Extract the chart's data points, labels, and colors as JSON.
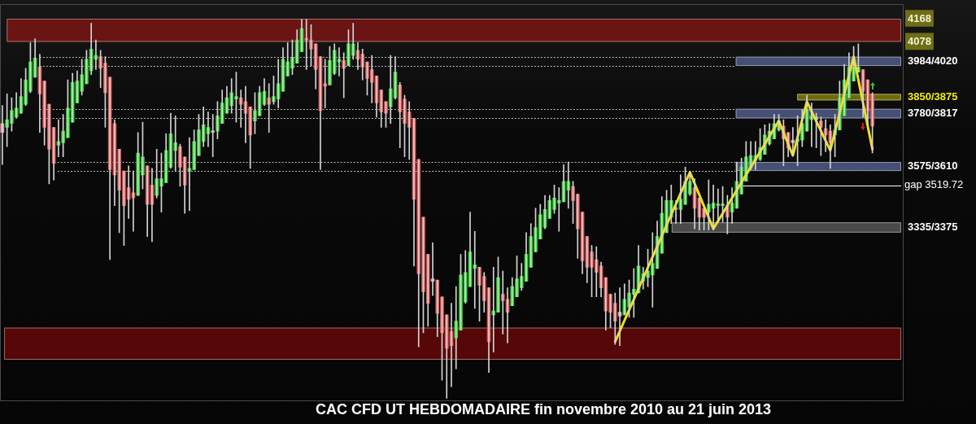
{
  "chart_data": {
    "type": "candlestick",
    "title": "CAC CFD UT HEBDOMADAIRE fin novembre 2010 au 21 juin 2013",
    "categories": [
      null,
      null,
      null,
      null,
      null,
      null,
      null,
      null,
      null,
      null,
      null,
      null,
      null,
      null,
      null,
      null,
      null,
      null,
      null,
      null,
      null,
      null,
      null,
      null,
      null,
      null,
      null,
      null,
      null,
      null,
      null,
      null,
      null,
      null,
      null,
      null,
      null,
      null,
      null,
      null,
      null,
      null,
      null,
      null,
      null,
      null,
      null,
      null,
      null,
      null,
      null,
      null,
      null,
      null,
      null,
      null,
      null,
      null,
      null,
      null,
      null,
      null,
      null,
      null,
      null,
      null,
      null,
      null,
      null,
      null,
      null,
      null,
      null,
      null,
      null,
      null,
      null,
      null,
      null,
      null,
      null,
      null,
      null,
      null,
      null,
      null,
      null,
      null,
      null,
      null,
      null,
      null,
      null,
      null,
      null,
      null,
      null,
      null,
      null,
      null,
      null,
      null,
      null,
      null,
      null,
      null,
      null,
      null,
      null,
      null,
      null,
      null,
      null,
      null,
      null,
      null,
      null,
      null,
      null,
      null,
      null,
      null,
      null,
      null,
      null,
      null,
      null,
      null,
      null,
      null,
      null,
      null,
      null,
      null,
      null,
      null,
      null,
      null,
      null,
      null,
      null,
      null,
      null,
      null,
      null,
      null,
      null,
      null,
      null,
      null,
      null,
      null,
      null,
      null,
      null,
      null,
      null,
      null,
      null,
      null,
      null,
      null,
      null,
      null,
      null,
      null,
      null,
      null,
      null,
      null,
      null,
      null,
      null,
      null,
      null,
      null,
      null,
      null,
      null,
      null,
      null,
      null,
      null,
      null,
      null,
      null,
      null,
      null,
      null,
      null,
      null,
      null,
      null
    ],
    "ohlc": [
      [
        3760,
        3830,
        3600,
        3725
      ],
      [
        3745,
        3875,
        3670,
        3775
      ],
      [
        3760,
        3860,
        3730,
        3810
      ],
      [
        3785,
        3880,
        3780,
        3820
      ],
      [
        3800,
        3935,
        3800,
        3865
      ],
      [
        3835,
        3975,
        3830,
        3930
      ],
      [
        3885,
        4075,
        3880,
        4000
      ],
      [
        3940,
        4090,
        3940,
        4015
      ],
      [
        3980,
        4030,
        3725,
        3875
      ],
      [
        3925,
        3925,
        3675,
        3745
      ],
      [
        3835,
        3835,
        3525,
        3660
      ],
      [
        3745,
        3745,
        3540,
        3605
      ],
      [
        3675,
        3775,
        3630,
        3690
      ],
      [
        3685,
        3795,
        3630,
        3730
      ],
      [
        3705,
        3930,
        3705,
        3820
      ],
      [
        3765,
        3955,
        3765,
        3920
      ],
      [
        3840,
        3965,
        3840,
        3925
      ],
      [
        3885,
        4010,
        3870,
        3950
      ],
      [
        3915,
        4045,
        3915,
        4010
      ],
      [
        3965,
        4150,
        3950,
        4050
      ],
      [
        4010,
        4085,
        3970,
        4025
      ],
      [
        4020,
        4045,
        3900,
        3975
      ],
      [
        3995,
        4020,
        3745,
        3880
      ],
      [
        3940,
        3940,
        3230,
        3580
      ],
      [
        3760,
        3775,
        3440,
        3560
      ],
      [
        3660,
        3660,
        3335,
        3500
      ],
      [
        3575,
        3575,
        3285,
        3440
      ],
      [
        3510,
        3595,
        3390,
        3465
      ],
      [
        3490,
        3575,
        3340,
        3470
      ],
      [
        3480,
        3725,
        3480,
        3645
      ],
      [
        3560,
        3765,
        3505,
        3630
      ],
      [
        3595,
        3595,
        3320,
        3445
      ],
      [
        3520,
        3585,
        3300,
        3445
      ],
      [
        3480,
        3660,
        3470,
        3545
      ],
      [
        3515,
        3645,
        3415,
        3545
      ],
      [
        3530,
        3720,
        3530,
        3655
      ],
      [
        3590,
        3800,
        3585,
        3720
      ],
      [
        3655,
        3790,
        3575,
        3685
      ],
      [
        3670,
        3680,
        3515,
        3590
      ],
      [
        3630,
        3630,
        3410,
        3520
      ],
      [
        3575,
        3705,
        3420,
        3585
      ],
      [
        3580,
        3735,
        3580,
        3690
      ],
      [
        3635,
        3795,
        3635,
        3735
      ],
      [
        3690,
        3825,
        3670,
        3755
      ],
      [
        3720,
        3805,
        3670,
        3745
      ],
      [
        3730,
        3795,
        3630,
        3725
      ],
      [
        3730,
        3845,
        3700,
        3790
      ],
      [
        3760,
        3890,
        3760,
        3840
      ],
      [
        3800,
        3905,
        3800,
        3860
      ],
      [
        3830,
        3935,
        3800,
        3880
      ],
      [
        3855,
        3960,
        3765,
        3865
      ],
      [
        3860,
        3890,
        3745,
        3835
      ],
      [
        3845,
        3905,
        3685,
        3800
      ],
      [
        3825,
        3825,
        3585,
        3715
      ],
      [
        3770,
        3880,
        3720,
        3810
      ],
      [
        3790,
        3905,
        3790,
        3880
      ],
      [
        3835,
        3935,
        3830,
        3885
      ],
      [
        3860,
        3915,
        3725,
        3835
      ],
      [
        3845,
        3945,
        3835,
        3865
      ],
      [
        3855,
        4010,
        3820,
        3915
      ],
      [
        3885,
        4055,
        3885,
        4010
      ],
      [
        3945,
        4075,
        3945,
        4000
      ],
      [
        3975,
        4085,
        3950,
        4015
      ],
      [
        3995,
        4125,
        3995,
        4085
      ],
      [
        4040,
        4165,
        4040,
        4130
      ],
      [
        4090,
        4165,
        3970,
        4085
      ],
      [
        4085,
        4145,
        3985,
        4050
      ],
      [
        4070,
        4070,
        3895,
        3970
      ],
      [
        4020,
        4020,
        3580,
        3810
      ],
      [
        3915,
        4010,
        3820,
        3905
      ],
      [
        3910,
        4060,
        3910,
        4005
      ],
      [
        3955,
        4070,
        3950,
        4045
      ],
      [
        4000,
        4055,
        3945,
        4010
      ],
      [
        4005,
        4035,
        3860,
        3975
      ],
      [
        3985,
        4125,
        3985,
        4070
      ],
      [
        4025,
        4150,
        4010,
        4070
      ],
      [
        4045,
        4075,
        3970,
        4010
      ],
      [
        4030,
        4050,
        3930,
        3980
      ],
      [
        4000,
        4000,
        3870,
        3935
      ],
      [
        3970,
        4025,
        3840,
        3920
      ],
      [
        3945,
        3945,
        3785,
        3840
      ],
      [
        3890,
        3890,
        3745,
        3805
      ],
      [
        3845,
        3845,
        3745,
        3800
      ],
      [
        3825,
        4025,
        3760,
        3895
      ],
      [
        3860,
        4020,
        3855,
        3960
      ],
      [
        3910,
        3920,
        3665,
        3805
      ],
      [
        3855,
        3870,
        3630,
        3760
      ],
      [
        3805,
        3845,
        3620,
        3745
      ],
      [
        3780,
        3780,
        3205,
        3465
      ],
      [
        3620,
        3620,
        2890,
        3175
      ],
      [
        3395,
        3395,
        2945,
        3105
      ],
      [
        3250,
        3250,
        2970,
        3060
      ],
      [
        3155,
        3295,
        3090,
        3145
      ],
      [
        3150,
        3150,
        2930,
        3020
      ],
      [
        3085,
        3085,
        2760,
        2945
      ],
      [
        3015,
        3015,
        2690,
        2885
      ],
      [
        2950,
        3060,
        2735,
        2895
      ],
      [
        2925,
        3125,
        2805,
        2990
      ],
      [
        2955,
        3250,
        2955,
        3170
      ],
      [
        3065,
        3265,
        3060,
        3180
      ],
      [
        3125,
        3415,
        3125,
        3260
      ],
      [
        3195,
        3340,
        3040,
        3210
      ],
      [
        3200,
        3200,
        2990,
        3130
      ],
      [
        3165,
        3180,
        3025,
        3070
      ],
      [
        3120,
        3120,
        2790,
        2910
      ],
      [
        3015,
        3200,
        2870,
        3030
      ],
      [
        3025,
        3240,
        3025,
        3160
      ],
      [
        3095,
        3185,
        2940,
        3070
      ],
      [
        3075,
        3120,
        2905,
        3025
      ],
      [
        3050,
        3160,
        3050,
        3125
      ],
      [
        3085,
        3245,
        3085,
        3155
      ],
      [
        3120,
        3215,
        3110,
        3165
      ],
      [
        3145,
        3335,
        3145,
        3250
      ],
      [
        3200,
        3370,
        3200,
        3320
      ],
      [
        3260,
        3430,
        3260,
        3355
      ],
      [
        3310,
        3445,
        3310,
        3405
      ],
      [
        3355,
        3480,
        3350,
        3425
      ],
      [
        3390,
        3480,
        3390,
        3460
      ],
      [
        3425,
        3520,
        3410,
        3470
      ],
      [
        3450,
        3510,
        3340,
        3460
      ],
      [
        3455,
        3600,
        3455,
        3535
      ],
      [
        3500,
        3610,
        3430,
        3535
      ],
      [
        3515,
        3535,
        3370,
        3460
      ],
      [
        3485,
        3485,
        3235,
        3350
      ],
      [
        3415,
        3415,
        3175,
        3225
      ],
      [
        3320,
        3320,
        3140,
        3200
      ],
      [
        3260,
        3285,
        3085,
        3200
      ],
      [
        3230,
        3280,
        3085,
        3180
      ],
      [
        3205,
        3220,
        3085,
        3120
      ],
      [
        3160,
        3160,
        2955,
        3030
      ],
      [
        3095,
        3095,
        2965,
        3025
      ],
      [
        3060,
        3100,
        2900,
        2990
      ],
      [
        3025,
        3120,
        2895,
        3010
      ],
      [
        3015,
        3135,
        3015,
        3075
      ],
      [
        3045,
        3150,
        3005,
        3100
      ],
      [
        3095,
        3195,
        3005,
        3115
      ],
      [
        3100,
        3285,
        3100,
        3205
      ],
      [
        3145,
        3200,
        3115,
        3175
      ],
      [
        3160,
        3270,
        3125,
        3185
      ],
      [
        3170,
        3335,
        3045,
        3215
      ],
      [
        3195,
        3380,
        3195,
        3320
      ],
      [
        3255,
        3475,
        3255,
        3410
      ],
      [
        3335,
        3500,
        3335,
        3460
      ],
      [
        3395,
        3520,
        3370,
        3460
      ],
      [
        3430,
        3460,
        3370,
        3425
      ],
      [
        3425,
        3560,
        3370,
        3465
      ],
      [
        3445,
        3590,
        3445,
        3535
      ],
      [
        3485,
        3570,
        3480,
        3535
      ],
      [
        3510,
        3545,
        3350,
        3430
      ],
      [
        3470,
        3470,
        3345,
        3395
      ],
      [
        3430,
        3430,
        3345,
        3395
      ],
      [
        3415,
        3540,
        3345,
        3445
      ],
      [
        3430,
        3520,
        3345,
        3450
      ],
      [
        3440,
        3505,
        3375,
        3445
      ],
      [
        3440,
        3515,
        3375,
        3445
      ],
      [
        3440,
        3480,
        3330,
        3395
      ],
      [
        3415,
        3510,
        3370,
        3450
      ],
      [
        3430,
        3610,
        3430,
        3535
      ],
      [
        3485,
        3625,
        3485,
        3590
      ],
      [
        3535,
        3690,
        3535,
        3630
      ],
      [
        3585,
        3690,
        3580,
        3635
      ],
      [
        3615,
        3690,
        3580,
        3635
      ],
      [
        3620,
        3740,
        3615,
        3665
      ],
      [
        3640,
        3755,
        3640,
        3715
      ],
      [
        3680,
        3760,
        3675,
        3730
      ],
      [
        3700,
        3795,
        3700,
        3760
      ],
      [
        3735,
        3795,
        3730,
        3770
      ],
      [
        3750,
        3775,
        3595,
        3700
      ],
      [
        3725,
        3725,
        3630,
        3665
      ],
      [
        3695,
        3745,
        3635,
        3685
      ],
      [
        3690,
        3790,
        3595,
        3700
      ],
      [
        3695,
        3815,
        3670,
        3760
      ],
      [
        3730,
        3870,
        3730,
        3815
      ],
      [
        3775,
        3840,
        3670,
        3790
      ],
      [
        3785,
        3800,
        3665,
        3775
      ],
      [
        3770,
        3785,
        3635,
        3745
      ],
      [
        3740,
        3775,
        3650,
        3715
      ],
      [
        3730,
        3755,
        3585,
        3685
      ],
      [
        3715,
        3795,
        3630,
        3735
      ],
      [
        3735,
        3925,
        3735,
        3860
      ],
      [
        3790,
        3990,
        3790,
        3930
      ],
      [
        3860,
        4035,
        3860,
        3980
      ],
      [
        3925,
        4060,
        3925,
        3980
      ],
      [
        3960,
        4070,
        3960,
        3980
      ],
      [
        3970,
        3970,
        3785,
        3885
      ],
      [
        3930,
        3930,
        3755,
        3810
      ],
      [
        3875,
        3880,
        3645,
        3750
      ],
      null,
      null,
      null,
      null,
      null,
      null
    ],
    "colors": [
      "#d6a4a4",
      "#2ed42e",
      "#2ed42e",
      "#2ed42e",
      "#2ed42e",
      "#2ed42e",
      "#2ed42e",
      "#2ed42e",
      "#e05a5a",
      "#e05a5a",
      "#e05a5a",
      "#e05a5a",
      "#2ed42e",
      "#2ed42e",
      "#2ed42e",
      "#2ed42e",
      "#2ed42e",
      "#2ed42e",
      "#2ed42e",
      "#2ed42e",
      "#2ed42e",
      "#e05a5a",
      "#e05a5a",
      "#e05a5a",
      "#e05a5a",
      "#e05a5a",
      "#e05a5a",
      "#e05a5a",
      "#e05a5a",
      "#2ed42e",
      "#2ed42e",
      "#e05a5a",
      "#e05a5a",
      "#2ed42e",
      "#2ed42e",
      "#2ed42e",
      "#2ed42e",
      "#2ed42e",
      "#e05a5a",
      "#e05a5a",
      "#2ed42e",
      "#2ed42e",
      "#2ed42e",
      "#2ed42e",
      "#2ed42e",
      "#d6a4a4",
      "#2ed42e",
      "#2ed42e",
      "#2ed42e",
      "#2ed42e",
      "#2ed42e",
      "#e05a5a",
      "#e05a5a",
      "#e05a5a",
      "#2ed42e",
      "#2ed42e",
      "#2ed42e",
      "#e05a5a",
      "#2ed42e",
      "#2ed42e",
      "#2ed42e",
      "#2ed42e",
      "#2ed42e",
      "#2ed42e",
      "#2ed42e",
      "#e05a5a",
      "#e05a5a",
      "#e05a5a",
      "#e05a5a",
      "#e05a5a",
      "#2ed42e",
      "#2ed42e",
      "#2ed42e",
      "#e05a5a",
      "#2ed42e",
      "#2ed42e",
      "#e05a5a",
      "#e05a5a",
      "#e05a5a",
      "#e05a5a",
      "#e05a5a",
      "#e05a5a",
      "#e05a5a",
      "#2ed42e",
      "#2ed42e",
      "#e05a5a",
      "#e05a5a",
      "#e05a5a",
      "#e05a5a",
      "#e05a5a",
      "#e05a5a",
      "#e05a5a",
      "#d6a4a4",
      "#e05a5a",
      "#e05a5a",
      "#e05a5a",
      "#e05a5a",
      "#2ed42e",
      "#2ed42e",
      "#2ed42e",
      "#2ed42e",
      "#2ed42e",
      "#e05a5a",
      "#e05a5a",
      "#e05a5a",
      "#2ed42e",
      "#2ed42e",
      "#e05a5a",
      "#e05a5a",
      "#2ed42e",
      "#2ed42e",
      "#2ed42e",
      "#2ed42e",
      "#2ed42e",
      "#2ed42e",
      "#2ed42e",
      "#2ed42e",
      "#2ed42e",
      "#2ed42e",
      "#2ed42e",
      "#2ed42e",
      "#2ed42e",
      "#e05a5a",
      "#e05a5a",
      "#e05a5a",
      "#e05a5a",
      "#e05a5a",
      "#e05a5a",
      "#e05a5a",
      "#e05a5a",
      "#e05a5a",
      "#e05a5a",
      "#d6a4a4",
      "#2ed42e",
      "#2ed42e",
      "#2ed42e",
      "#2ed42e",
      "#2ed42e",
      "#2ed42e",
      "#2ed42e",
      "#2ed42e",
      "#2ed42e",
      "#2ed42e",
      "#2ed42e",
      "#e05a5a",
      "#2ed42e",
      "#2ed42e",
      "#2ed42e",
      "#e05a5a",
      "#e05a5a",
      "#e05a5a",
      "#2ed42e",
      "#2ed42e",
      "#2ed42e",
      "#2ed42e",
      "#e05a5a",
      "#2ed42e",
      "#2ed42e",
      "#2ed42e",
      "#2ed42e",
      "#2ed42e",
      "#2ed42e",
      "#2ed42e",
      "#2ed42e",
      "#2ed42e",
      "#2ed42e",
      "#2ed42e",
      "#e05a5a",
      "#e05a5a",
      "#d6a4a4",
      "#2ed42e",
      "#2ed42e",
      "#2ed42e",
      "#2ed42e",
      "#d6a4a4",
      "#e05a5a",
      "#e05a5a",
      "#e05a5a",
      "#2ed42e",
      "#2ed42e",
      "#2ed42e",
      "#2ed42e",
      "#2ed42e",
      "#2ed42e",
      "#e05a5a",
      "#e05a5a",
      "#e05a5a",
      null,
      null,
      null,
      null,
      null,
      null
    ],
    "series": [
      {
        "type": "line",
        "color": "#f0e01e",
        "values": [
          null,
          null,
          null,
          null,
          null,
          null,
          null,
          null,
          null,
          null,
          null,
          null,
          null,
          null,
          null,
          null,
          null,
          null,
          null,
          null,
          null,
          null,
          null,
          null,
          null,
          null,
          null,
          null,
          null,
          null,
          null,
          null,
          null,
          null,
          null,
          null,
          null,
          null,
          null,
          null,
          null,
          null,
          null,
          null,
          null,
          null,
          null,
          null,
          null,
          null,
          null,
          null,
          null,
          null,
          null,
          null,
          null,
          null,
          null,
          null,
          null,
          null,
          null,
          null,
          null,
          null,
          null,
          null,
          null,
          null,
          null,
          null,
          null,
          null,
          null,
          null,
          null,
          null,
          null,
          null,
          null,
          null,
          null,
          null,
          null,
          null,
          null,
          null,
          null,
          null,
          null,
          null,
          null,
          null,
          null,
          null,
          null,
          null,
          null,
          null,
          null,
          null,
          null,
          null,
          null,
          null,
          null,
          null,
          null,
          null,
          null,
          null,
          null,
          null,
          null,
          null,
          null,
          null,
          null,
          null,
          null,
          null,
          null,
          null,
          null,
          null,
          null,
          null,
          null,
          null,
          null,
          2910,
          2951,
          2993,
          3034,
          3075,
          3116,
          3158,
          3199,
          3240,
          3281,
          3323,
          3364,
          3405,
          3446,
          3488,
          3529,
          3570,
          3526,
          3482,
          3438,
          3394,
          3350,
          3380,
          3410,
          3440,
          3470,
          3500,
          3530,
          3560,
          3590,
          3620,
          3650,
          3680,
          3710,
          3740,
          3770,
          3725,
          3680,
          3635,
          3705,
          3775,
          3845,
          3807,
          3769,
          3731,
          3693,
          3655,
          3728,
          3801,
          3874,
          3947,
          4020,
          3930,
          3840,
          3750,
          3660,
          null,
          null,
          null,
          null,
          null,
          null
        ]
      }
    ],
    "ylim": [
      2680,
      4225
    ],
    "yticks": [
      4078,
      4168
    ],
    "tick_labels": "y",
    "bands": [
      {
        "axis": "y",
        "from": 4078,
        "to": 4168,
        "color": "#6a1414"
      },
      {
        "axis": "y",
        "from": 2840,
        "to": 2965,
        "color": "#560808"
      },
      {
        "axis": "y",
        "from": 3984,
        "to": 4020,
        "label": "3984/4020",
        "color": "#465074"
      },
      {
        "axis": "y",
        "from": 3850,
        "to": 3875,
        "label": "3850/3875",
        "color": "#6e6a0a"
      },
      {
        "axis": "y",
        "from": 3780,
        "to": 3817,
        "label": "3780/3817",
        "color": "#465074"
      },
      {
        "axis": "y",
        "from": 3575,
        "to": 3610,
        "label": "3575/3610",
        "color": "#465074"
      },
      {
        "axis": "y",
        "from": 3335,
        "to": 3375,
        "label": "3335/3375",
        "color": "#4a4a4a"
      }
    ],
    "ref_lines": [
      {
        "axis": "y",
        "value": 3519.72,
        "label": "gap 3519.72",
        "color": "#ffffff"
      },
      {
        "axis": "y",
        "value": 4020,
        "color": "#bdbdbd",
        "line_style": "dotted"
      },
      {
        "axis": "y",
        "value": 3984,
        "color": "#bdbdbd",
        "line_style": "dotted"
      },
      {
        "axis": "y",
        "value": 3817,
        "color": "#bdbdbd",
        "line_style": "dotted"
      },
      {
        "axis": "y",
        "value": 3780,
        "color": "#bdbdbd",
        "line_style": "dotted"
      },
      {
        "axis": "y",
        "value": 3610,
        "color": "#bdbdbd",
        "line_style": "dotted"
      },
      {
        "axis": "y",
        "value": 3575,
        "color": "#bdbdbd",
        "line_style": "dotted"
      }
    ]
  }
}
